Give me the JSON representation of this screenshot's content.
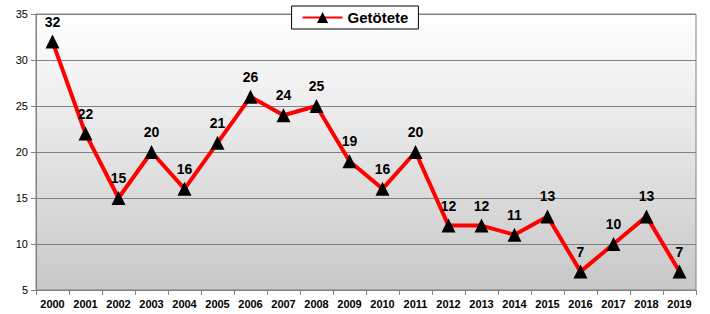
{
  "chart_data": {
    "type": "line",
    "categories": [
      "2000",
      "2001",
      "2002",
      "2003",
      "2004",
      "2005",
      "2006",
      "2007",
      "2008",
      "2009",
      "2010",
      "2011",
      "2012",
      "2013",
      "2014",
      "2015",
      "2016",
      "2017",
      "2018",
      "2019"
    ],
    "series": [
      {
        "name": "Getötete",
        "color": "#ff0000",
        "marker": "triangle",
        "values": [
          32,
          22,
          15,
          20,
          16,
          21,
          26,
          24,
          25,
          19,
          16,
          20,
          12,
          12,
          11,
          13,
          7,
          10,
          13,
          7
        ]
      }
    ],
    "ylim": [
      5,
      35
    ],
    "yticks": [
      5,
      10,
      15,
      20,
      25,
      30,
      35
    ],
    "grid": true,
    "data_labels": true,
    "legend": "top"
  }
}
